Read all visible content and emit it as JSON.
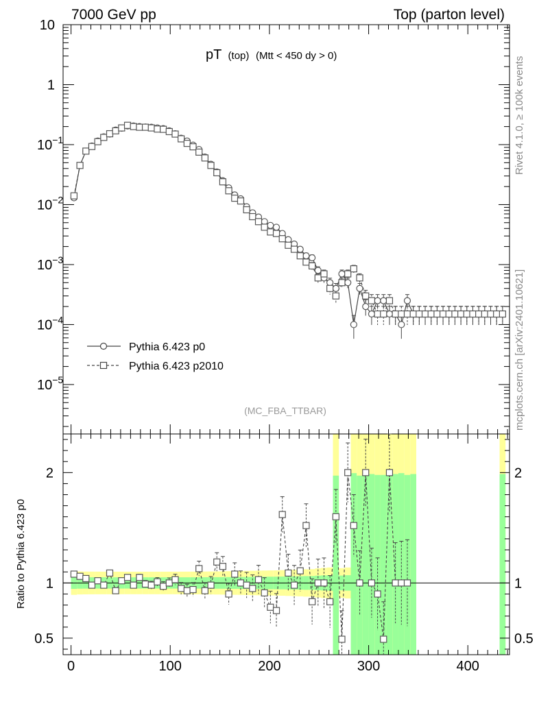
{
  "header": {
    "left": "7000 GeV pp",
    "right": "Top (parton level)"
  },
  "side_labels": {
    "rivet": "Rivet 4.1.0, ≥ 100k events",
    "mcplots": "mcplots.cern.ch [arXiv:2401.10621]"
  },
  "chart_data": [
    {
      "type": "scatter",
      "panel": "main",
      "title": "pT",
      "title_sub": "(top)",
      "title_cut": "(Mtt < 450 dy > 0)",
      "analysis": "(MC_FBA_TTBAR)",
      "yscale": "log",
      "ylim": [
        1.5e-06,
        10
      ],
      "xlim": [
        -8,
        442
      ],
      "y_ticks": [
        {
          "value": 10,
          "label": "10",
          "exp": ""
        },
        {
          "value": 1,
          "label": "1",
          "exp": ""
        },
        {
          "value": 0.1,
          "label": "10",
          "exp": "−1"
        },
        {
          "value": 0.01,
          "label": "10",
          "exp": "−2"
        },
        {
          "value": 0.001,
          "label": "10",
          "exp": "−3"
        },
        {
          "value": 0.0001,
          "label": "10",
          "exp": "−4"
        },
        {
          "value": 1e-05,
          "label": "10",
          "exp": "−5"
        }
      ],
      "legend": [
        {
          "label": "Pythia 6.423 p0",
          "marker": "circle",
          "style": "solid"
        },
        {
          "label": "Pythia 6.423 p2010",
          "marker": "square",
          "style": "dashed"
        }
      ],
      "series": [
        {
          "name": "Pythia 6.423 p0",
          "x": [
            3,
            9,
            15,
            21,
            27,
            33,
            39,
            45,
            51,
            57,
            63,
            69,
            75,
            81,
            87,
            93,
            99,
            105,
            111,
            117,
            123,
            129,
            135,
            141,
            147,
            153,
            159,
            165,
            171,
            177,
            183,
            189,
            195,
            201,
            207,
            213,
            219,
            225,
            231,
            237,
            243,
            249,
            255,
            261,
            267,
            273,
            279,
            285,
            291,
            297,
            303,
            309,
            315,
            321,
            327,
            333,
            339,
            345,
            351,
            357,
            363,
            369,
            375,
            381,
            387,
            393,
            399,
            405,
            411,
            417,
            423,
            429,
            435
          ],
          "y": [
            0.013,
            0.045,
            0.078,
            0.095,
            0.115,
            0.135,
            0.15,
            0.175,
            0.188,
            0.205,
            0.205,
            0.2,
            0.197,
            0.195,
            0.19,
            0.185,
            0.17,
            0.152,
            0.128,
            0.115,
            0.098,
            0.083,
            0.062,
            0.047,
            0.035,
            0.025,
            0.019,
            0.0145,
            0.0125,
            0.0092,
            0.0073,
            0.0062,
            0.0052,
            0.0045,
            0.0042,
            0.0033,
            0.0026,
            0.0022,
            0.0018,
            0.0014,
            0.0013,
            0.0008,
            0.0006,
            0.0005,
            0.0004,
            0.0007,
            0.0005,
            0.0001,
            0.0004,
            0.0002,
            0.00015,
            0.00025,
            0.00025,
            0.00015,
            0.00015,
            0.0001,
            0.00025,
            0.00015,
            0.00015,
            0.00015,
            0.00015,
            0.00015,
            0.00015,
            0.00015,
            0.00015,
            0.00015,
            0.00015,
            0.00015,
            0.00015,
            0.00015,
            0.00015,
            0.00015,
            0.00015
          ]
        },
        {
          "name": "Pythia 6.423 p2010",
          "x": [
            3,
            9,
            15,
            21,
            27,
            33,
            39,
            45,
            51,
            57,
            63,
            69,
            75,
            81,
            87,
            93,
            99,
            105,
            111,
            117,
            123,
            129,
            135,
            141,
            147,
            153,
            159,
            165,
            171,
            177,
            183,
            189,
            195,
            201,
            207,
            213,
            219,
            225,
            231,
            237,
            243,
            249,
            255,
            261,
            267,
            273,
            279,
            285,
            291,
            297,
            303,
            309,
            315,
            321,
            327,
            333,
            339,
            345,
            351,
            357,
            363,
            369,
            375,
            381,
            387,
            393,
            399,
            405,
            411,
            417,
            423,
            429,
            435
          ],
          "y": [
            0.014,
            0.045,
            0.078,
            0.093,
            0.112,
            0.132,
            0.152,
            0.17,
            0.19,
            0.21,
            0.2,
            0.195,
            0.195,
            0.19,
            0.182,
            0.18,
            0.165,
            0.15,
            0.125,
            0.105,
            0.092,
            0.075,
            0.06,
            0.045,
            0.034,
            0.024,
            0.017,
            0.0128,
            0.0115,
            0.0082,
            0.0063,
            0.0052,
            0.0042,
            0.0035,
            0.0033,
            0.0027,
            0.0021,
            0.0018,
            0.0014,
            0.0011,
            0.00095,
            0.0006,
            0.0007,
            0.0004,
            0.0003,
            0.0005,
            0.0007,
            0.00085,
            0.0006,
            0.0003,
            0.00025,
            0.00015,
            0.00015,
            0.00025,
            0.00015,
            0.00015,
            0.00015,
            0.00015,
            0.00015,
            0.00015,
            0.00015,
            0.00015,
            0.00015,
            0.00015,
            0.00015,
            0.00015,
            0.00015,
            0.00015,
            0.00015,
            0.00015,
            0.00015,
            0.00015,
            0.00015
          ]
        }
      ]
    },
    {
      "type": "scatter",
      "panel": "ratio",
      "ylabel": "Ratio to Pythia 6.423 p0",
      "ylim": [
        0.35,
        2.35
      ],
      "xlim": [
        -8,
        442
      ],
      "x_ticks": [
        0,
        100,
        200,
        300,
        400
      ],
      "y_ticks": [
        0.5,
        1,
        2
      ],
      "reference_line": 1,
      "series": [
        {
          "name": "Pythia 6.423 p2010",
          "x": [
            3,
            9,
            15,
            21,
            27,
            33,
            39,
            45,
            51,
            57,
            63,
            69,
            75,
            81,
            87,
            93,
            99,
            105,
            111,
            117,
            123,
            129,
            135,
            141,
            147,
            153,
            159,
            165,
            171,
            177,
            183,
            189,
            195,
            201,
            207,
            213,
            219,
            225,
            231,
            237,
            243,
            249,
            255,
            261,
            267,
            273,
            279,
            285,
            291,
            297,
            303,
            309,
            315,
            321,
            327,
            333,
            339
          ],
          "y": [
            1.08,
            1.06,
            1.04,
            0.98,
            1.02,
            0.98,
            1.09,
            0.93,
            1.02,
            1.05,
            0.98,
            1.05,
            0.99,
            0.98,
            1.01,
            0.97,
            1.0,
            1.03,
            0.95,
            0.93,
            0.94,
            1.13,
            0.93,
            0.98,
            1.19,
            1.15,
            0.9,
            1.08,
            1.0,
            0.98,
            0.95,
            1.03,
            0.91,
            0.78,
            0.75,
            1.62,
            1.09,
            0.98,
            1.11,
            1.52,
            0.83,
            1.0,
            1.0,
            0.83,
            1.6,
            0.49,
            2.0,
            1.52,
            1.0,
            2.0,
            1.0,
            0.9,
            0.49,
            2.0,
            1.0,
            1.0,
            1.0
          ]
        }
      ]
    }
  ]
}
